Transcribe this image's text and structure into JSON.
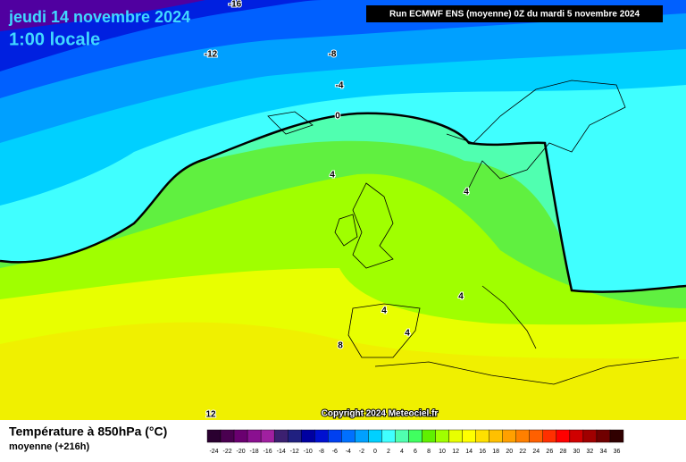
{
  "header": {
    "title": "jeudi 14 novembre 2024",
    "subtitle": "1:00 locale",
    "run_info": "Run ECMWF ENS (moyenne) 0Z du mardi 5 novembre 2024"
  },
  "contour_labels": [
    -16,
    -12,
    -8,
    -4,
    0,
    4,
    4,
    4,
    4,
    4,
    8,
    12
  ],
  "copyright": "Copyright 2024 Meteociel.fr",
  "footer": {
    "title": "Température à 850hPa (°C)",
    "subtitle": "moyenne  (+216h)"
  },
  "legend": {
    "labels": [
      -24,
      -22,
      -20,
      -18,
      -16,
      -14,
      -12,
      -10,
      -8,
      -6,
      -4,
      -2,
      0,
      2,
      4,
      6,
      8,
      10,
      12,
      14,
      16,
      18,
      20,
      22,
      24,
      26,
      28,
      30,
      32,
      34,
      36
    ],
    "colors": [
      "#2a0030",
      "#4a0050",
      "#6a0070",
      "#8a1090",
      "#a020a0",
      "#3c2070",
      "#202080",
      "#0000a0",
      "#0010d0",
      "#0040f0",
      "#0070ff",
      "#00a0ff",
      "#00d0ff",
      "#40ffff",
      "#50ffb0",
      "#40ff60",
      "#60f000",
      "#a0ff00",
      "#e8ff00",
      "#ffff00",
      "#ffe000",
      "#ffc000",
      "#ffa000",
      "#ff8000",
      "#ff6000",
      "#ff3000",
      "#ff0000",
      "#d00000",
      "#a00000",
      "#700000",
      "#300000"
    ]
  }
}
